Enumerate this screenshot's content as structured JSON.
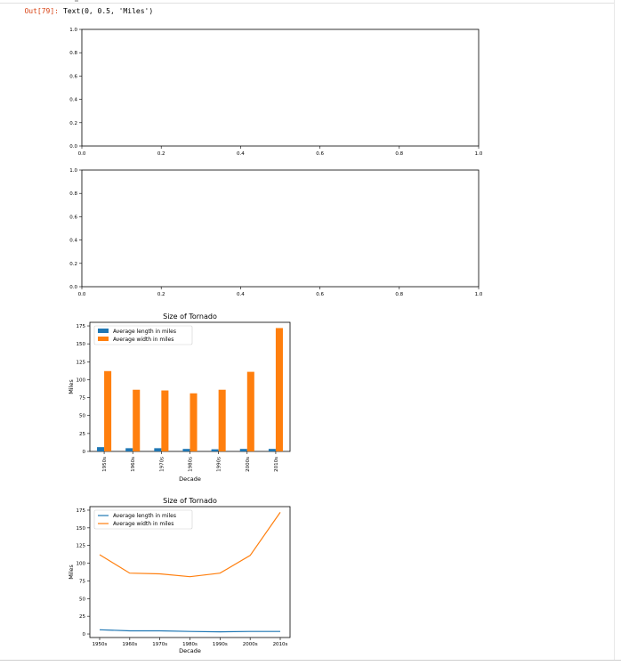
{
  "cell": {
    "prompt": "Out[79]:",
    "output_text": "Text(0, 0.5, 'Miles')"
  },
  "colors": {
    "blue": "#1f77b4",
    "orange": "#ff7f0e",
    "prompt": "#d84315"
  },
  "chart_data": [
    {
      "type": "line",
      "title": "",
      "xlim": [
        0,
        1
      ],
      "ylim": [
        0,
        1
      ],
      "xticks": [
        "0.0",
        "0.2",
        "0.4",
        "0.6",
        "0.8",
        "1.0"
      ],
      "yticks": [
        "0.0",
        "0.2",
        "0.4",
        "0.6",
        "0.8",
        "1.0"
      ],
      "series": []
    },
    {
      "type": "line",
      "title": "",
      "xlim": [
        0,
        1
      ],
      "ylim": [
        0,
        1
      ],
      "xticks": [
        "0.0",
        "0.2",
        "0.4",
        "0.6",
        "0.8",
        "1.0"
      ],
      "yticks": [
        "0.0",
        "0.2",
        "0.4",
        "0.6",
        "0.8",
        "1.0"
      ],
      "series": []
    },
    {
      "type": "bar",
      "title": "Size of Tornado",
      "xlabel": "Decade",
      "ylabel": "Miles",
      "ylim": [
        0,
        180
      ],
      "yticks": [
        "0",
        "25",
        "50",
        "75",
        "100",
        "125",
        "150",
        "175"
      ],
      "categories": [
        "1950s",
        "1960s",
        "1970s",
        "1980s",
        "1990s",
        "2000s",
        "2010s"
      ],
      "legend_position": "top-left",
      "series": [
        {
          "name": "Average length in miles",
          "values": [
            6,
            4.5,
            4.5,
            3.5,
            3,
            3.5,
            3.5
          ]
        },
        {
          "name": "Average width in miles",
          "values": [
            112,
            86,
            85,
            81,
            86,
            111,
            172
          ]
        }
      ]
    },
    {
      "type": "line",
      "title": "Size of Tornado",
      "xlabel": "Decade",
      "ylabel": "Miles",
      "ylim": [
        -5,
        180
      ],
      "yticks": [
        "0",
        "25",
        "50",
        "75",
        "100",
        "125",
        "150",
        "175"
      ],
      "categories": [
        "1950s",
        "1960s",
        "1970s",
        "1980s",
        "1990s",
        "2000s",
        "2010s"
      ],
      "legend_position": "top-left",
      "series": [
        {
          "name": "Average length in miles",
          "values": [
            6,
            4.5,
            4.5,
            3.5,
            3,
            3.5,
            3.5
          ]
        },
        {
          "name": "Average width in miles",
          "values": [
            112,
            86,
            85,
            81,
            86,
            111,
            172
          ]
        }
      ]
    }
  ]
}
